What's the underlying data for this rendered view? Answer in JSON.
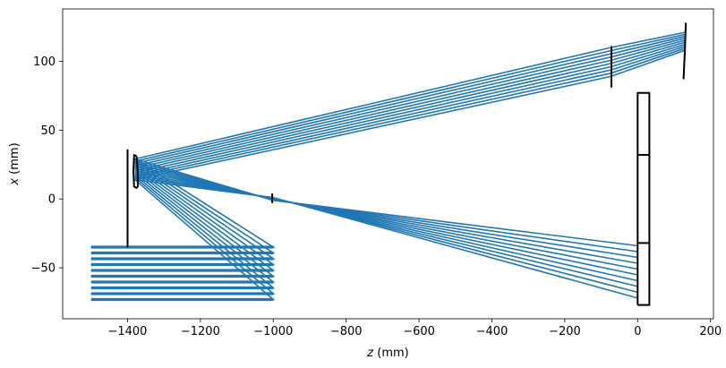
{
  "chart_data": {
    "type": "line",
    "title": "",
    "xlabel_var": "z",
    "xlabel_unit": " (mm)",
    "ylabel_var": "x",
    "ylabel_unit": " (mm)",
    "xlim": [
      -1578,
      208
    ],
    "ylim": [
      -87,
      138
    ],
    "xticks": [
      -1400,
      -1200,
      -1000,
      -800,
      -600,
      -400,
      -200,
      0,
      200
    ],
    "xtick_labels": [
      "−1400",
      "−1200",
      "−1000",
      "−800",
      "−600",
      "−400",
      "−200",
      "0",
      "200"
    ],
    "yticks": [
      -50,
      0,
      50,
      100
    ],
    "ytick_labels": [
      "−50",
      "0",
      "50",
      "100"
    ],
    "grid": false,
    "legend": "none",
    "ray_color": "#1f77b4",
    "element_color": "#000000",
    "rays": {
      "z_start": -1500,
      "x_start_range": [
        -35,
        -73
      ],
      "count": 10,
      "path_z": [
        -1500,
        -1400,
        -1380,
        -1000,
        -74,
        130
      ],
      "aperture_z": -1000,
      "aperture_x": 0,
      "concave_z": -1380,
      "concave_x_range": [
        14,
        29
      ],
      "secondary_z": -74,
      "secondary_x_range": [
        89,
        110
      ],
      "tertiary_z": 130,
      "tertiary_x_range": [
        108,
        121
      ],
      "return_target_z": 0,
      "return_target_x_range": [
        -34,
        -72
      ]
    },
    "elements": [
      {
        "name": "stop-left",
        "points": [
          [
            -1400,
            -35
          ],
          [
            -1400,
            36
          ]
        ]
      },
      {
        "name": "mirror-left",
        "points": [
          [
            -1375,
            31
          ],
          [
            -1372,
            20
          ],
          [
            -1372,
            9
          ],
          [
            -1375,
            8
          ],
          [
            -1382,
            9
          ],
          [
            -1384,
            20
          ],
          [
            -1382,
            32
          ],
          [
            -1375,
            31
          ]
        ]
      },
      {
        "name": "aperture",
        "points": [
          [
            -1003,
            4
          ],
          [
            -1003,
            -3
          ]
        ]
      },
      {
        "name": "mirror-secondary",
        "points": [
          [
            -72,
            81
          ],
          [
            -72,
            111
          ]
        ]
      },
      {
        "name": "mirror-tertiary",
        "points": [
          [
            126,
            87
          ],
          [
            130,
            110
          ],
          [
            132,
            128
          ]
        ]
      },
      {
        "name": "detector-box",
        "points": [
          [
            0,
            -77
          ],
          [
            0,
            77
          ],
          [
            32,
            77
          ],
          [
            32,
            -77
          ],
          [
            0,
            -77
          ]
        ]
      },
      {
        "name": "detector-divider-top",
        "points": [
          [
            0,
            32
          ],
          [
            32,
            32
          ]
        ]
      },
      {
        "name": "detector-divider-bottom",
        "points": [
          [
            0,
            -32
          ],
          [
            32,
            -32
          ]
        ]
      }
    ]
  }
}
